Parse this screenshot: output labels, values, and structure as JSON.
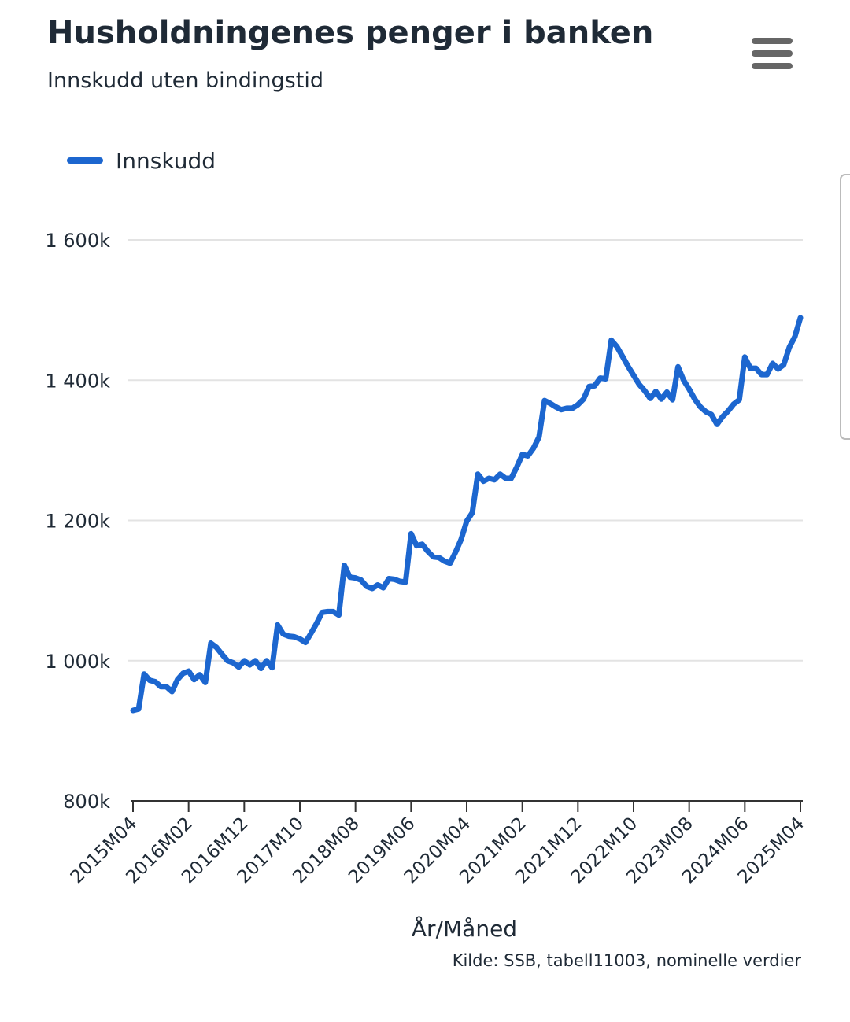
{
  "chart_data": {
    "type": "line",
    "title": "Husholdningenes penger i banken",
    "subtitle": "Innskudd uten bindingstid",
    "x_label": "År/Måned",
    "source": "Kilde: SSB, tabell11003, nominelle verdier",
    "categories": [
      "2015M04",
      null,
      null,
      null,
      null,
      null,
      null,
      null,
      null,
      null,
      "2016M02",
      null,
      null,
      null,
      null,
      null,
      null,
      null,
      null,
      null,
      "2016M12",
      null,
      null,
      null,
      null,
      null,
      null,
      null,
      null,
      null,
      "2017M10",
      null,
      null,
      null,
      null,
      null,
      null,
      null,
      null,
      null,
      "2018M08",
      null,
      null,
      null,
      null,
      null,
      null,
      null,
      null,
      null,
      "2019M06",
      null,
      null,
      null,
      null,
      null,
      null,
      null,
      null,
      null,
      "2020M04",
      null,
      null,
      null,
      null,
      null,
      null,
      null,
      null,
      null,
      "2021M02",
      null,
      null,
      null,
      null,
      null,
      null,
      null,
      null,
      null,
      "2021M12",
      null,
      null,
      null,
      null,
      null,
      null,
      null,
      null,
      null,
      "2022M10",
      null,
      null,
      null,
      null,
      null,
      null,
      null,
      null,
      null,
      "2023M08",
      null,
      null,
      null,
      null,
      null,
      null,
      null,
      null,
      null,
      "2024M06",
      null,
      null,
      null,
      null,
      null,
      null,
      null,
      null,
      null,
      "2025M04"
    ],
    "series": [
      {
        "name": "Innskudd",
        "color": "#1c66cf",
        "values": [
          929,
          931,
          981,
          972,
          970,
          963,
          963,
          956,
          973,
          982,
          985,
          973,
          980,
          969,
          1025,
          1019,
          1009,
          1000,
          997,
          991,
          1000,
          994,
          1000,
          989,
          1000,
          990,
          1051,
          1038,
          1035,
          1034,
          1031,
          1026,
          1039,
          1053,
          1069,
          1070,
          1070,
          1065,
          1136,
          1119,
          1118,
          1115,
          1106,
          1103,
          1108,
          1104,
          1117,
          1116,
          1113,
          1112,
          1181,
          1164,
          1166,
          1156,
          1148,
          1147,
          1142,
          1139,
          1155,
          1173,
          1199,
          1211,
          1266,
          1256,
          1260,
          1258,
          1266,
          1260,
          1260,
          1276,
          1294,
          1292,
          1303,
          1319,
          1371,
          1367,
          1362,
          1358,
          1360,
          1360,
          1365,
          1373,
          1391,
          1392,
          1403,
          1402,
          1457,
          1448,
          1434,
          1420,
          1407,
          1394,
          1385,
          1374,
          1384,
          1373,
          1383,
          1372,
          1419,
          1400,
          1387,
          1373,
          1362,
          1355,
          1351,
          1337,
          1348,
          1356,
          1366,
          1372,
          1433,
          1417,
          1417,
          1408,
          1408,
          1424,
          1416,
          1422,
          1447,
          1462,
          1489
        ]
      }
    ],
    "ylim": [
      800,
      1600
    ],
    "yticks": [
      {
        "value": 800,
        "label": "800k"
      },
      {
        "value": 1000,
        "label": "1 000k"
      },
      {
        "value": 1200,
        "label": "1 200k"
      },
      {
        "value": 1400,
        "label": "1 400k"
      },
      {
        "value": 1600,
        "label": "1 600k"
      }
    ],
    "grid": true,
    "legend": "top-left"
  }
}
